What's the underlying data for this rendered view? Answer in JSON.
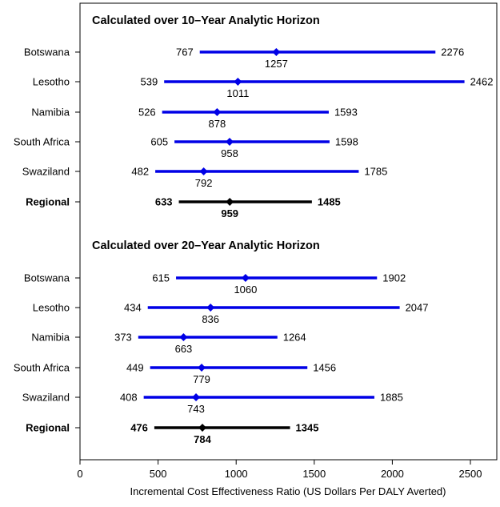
{
  "chart_data": {
    "type": "interval",
    "xlabel": "Incremental Cost Effectiveness Ratio (US Dollars Per DALY Averted)",
    "xlim": [
      0,
      2700
    ],
    "x_ticks": [
      0,
      500,
      1000,
      1500,
      2000,
      2500
    ],
    "panels": [
      {
        "title": "Calculated over 10–Year Analytic Horizon",
        "rows": [
          {
            "label": "Botswana",
            "low": 767,
            "point": 1257,
            "high": 2276,
            "color": "#0000e6",
            "bold": false
          },
          {
            "label": "Lesotho",
            "low": 539,
            "point": 1011,
            "high": 2462,
            "color": "#0000e6",
            "bold": false
          },
          {
            "label": "Namibia",
            "low": 526,
            "point": 878,
            "high": 1593,
            "color": "#0000e6",
            "bold": false
          },
          {
            "label": "South Africa",
            "low": 605,
            "point": 958,
            "high": 1598,
            "color": "#0000e6",
            "bold": false
          },
          {
            "label": "Swaziland",
            "low": 482,
            "point": 792,
            "high": 1785,
            "color": "#0000e6",
            "bold": false
          },
          {
            "label": "Regional",
            "low": 633,
            "point": 959,
            "high": 1485,
            "color": "#000000",
            "bold": true
          }
        ]
      },
      {
        "title": "Calculated over 20–Year Analytic Horizon",
        "rows": [
          {
            "label": "Botswana",
            "low": 615,
            "point": 1060,
            "high": 1902,
            "color": "#0000e6",
            "bold": false
          },
          {
            "label": "Lesotho",
            "low": 434,
            "point": 836,
            "high": 2047,
            "color": "#0000e6",
            "bold": false
          },
          {
            "label": "Namibia",
            "low": 373,
            "point": 663,
            "high": 1264,
            "color": "#0000e6",
            "bold": false
          },
          {
            "label": "South Africa",
            "low": 449,
            "point": 779,
            "high": 1456,
            "color": "#0000e6",
            "bold": false
          },
          {
            "label": "Swaziland",
            "low": 408,
            "point": 743,
            "high": 1885,
            "color": "#0000e6",
            "bold": false
          },
          {
            "label": "Regional",
            "low": 476,
            "point": 784,
            "high": 1345,
            "color": "#000000",
            "bold": true
          }
        ]
      }
    ]
  }
}
